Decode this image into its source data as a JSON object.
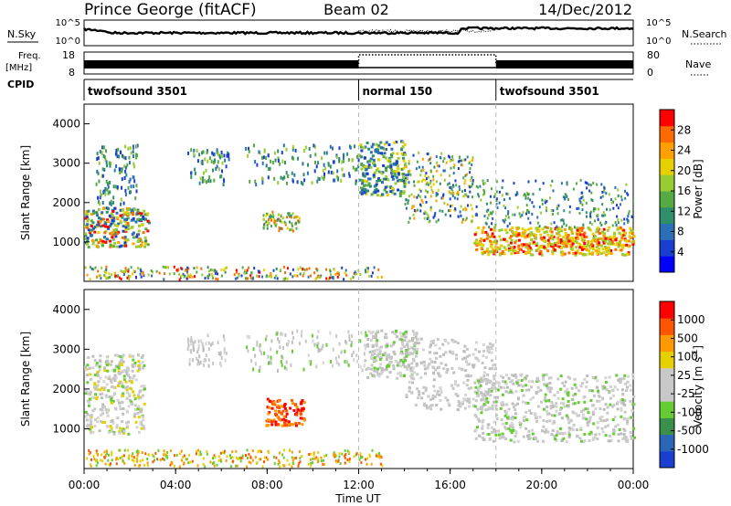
{
  "header": {
    "station": "Prince George (fitACF)",
    "beam": "Beam 02",
    "date": "14/Dec/2012"
  },
  "colors": {
    "power_scale": [
      "#0000ff",
      "#1a3fd0",
      "#2b6fb8",
      "#2f8f6a",
      "#55aa44",
      "#99cc33",
      "#e6d000",
      "#ffa000",
      "#ff6a00",
      "#ff0000"
    ],
    "velocity_scale": [
      "#1a3fd0",
      "#2b66b8",
      "#3a8f4a",
      "#66cc33",
      "#c8c8c8",
      "#c8c8c8",
      "#e6d000",
      "#ff9900",
      "#ff5500",
      "#ff0000"
    ]
  },
  "chart_data": [
    {
      "type": "line",
      "name": "nsky-nsearch",
      "left_label": "N.Sky",
      "right_label": "N.Search",
      "left_ticks": [
        "10^5",
        "10^0"
      ],
      "right_ticks": [
        "10^5",
        "10^0"
      ],
      "xlim": [
        0,
        24
      ]
    },
    {
      "type": "line",
      "name": "freq-nave",
      "left_label": "Freq.",
      "left_unit": "[MHz]",
      "right_label": "Nave",
      "left_ticks": [
        18,
        8
      ],
      "right_ticks": [
        80,
        0
      ],
      "xlim": [
        0,
        24
      ]
    },
    {
      "type": "table",
      "name": "cpid",
      "label": "CPID",
      "segments": [
        {
          "label": "twofsound 3501",
          "start": 0,
          "end": 12
        },
        {
          "label": "normal 150",
          "start": 12,
          "end": 18
        },
        {
          "label": "twofsound 3501",
          "start": 18,
          "end": 24
        }
      ]
    },
    {
      "type": "heatmap",
      "name": "power",
      "ylabel": "Slant Range [km]",
      "ylim": [
        0,
        4500
      ],
      "yticks": [
        1000,
        2000,
        3000,
        4000
      ],
      "xlim": [
        0,
        24
      ],
      "colorbar_label": "Power [dB]",
      "colorbar_ticks": [
        4,
        8,
        12,
        16,
        20,
        24,
        28
      ]
    },
    {
      "type": "heatmap",
      "name": "velocity",
      "ylabel": "Slant Range [km]",
      "ylim": [
        0,
        4500
      ],
      "yticks": [
        1000,
        2000,
        3000,
        4000
      ],
      "xlim": [
        0,
        24
      ],
      "xlabel": "Time UT",
      "xticks": [
        "00:00",
        "04:00",
        "08:00",
        "12:00",
        "16:00",
        "20:00",
        "00:00"
      ],
      "colorbar_label": "Velocity [m s",
      "colorbar_unit_exp": "-1",
      "colorbar_unit_close": "]",
      "colorbar_ticks": [
        "1000",
        "500",
        "100",
        "25",
        "-25",
        "-100",
        "-500",
        "-1000"
      ]
    }
  ]
}
